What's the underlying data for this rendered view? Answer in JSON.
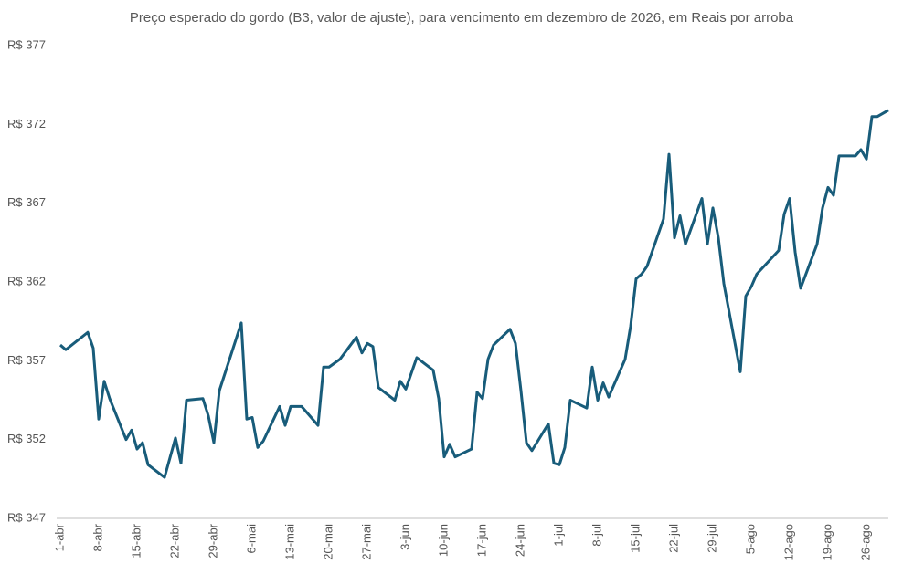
{
  "chart_data": {
    "type": "line",
    "title": "Preço esperado do gordo (B3, valor de ajuste), para vencimento em dezembro de 2026, em Reais por arroba",
    "x": [
      "1-abr",
      "2-abr",
      "6-abr",
      "7-abr",
      "8-abr",
      "9-abr",
      "10-abr",
      "13-abr",
      "14-abr",
      "15-abr",
      "16-abr",
      "17-abr",
      "20-abr",
      "22-abr",
      "23-abr",
      "24-abr",
      "27-abr",
      "28-abr",
      "29-abr",
      "30-abr",
      "4-mai",
      "5-mai",
      "6-mai",
      "7-mai",
      "8-mai",
      "11-mai",
      "12-mai",
      "13-mai",
      "15-mai",
      "18-mai",
      "19-mai",
      "20-mai",
      "22-mai",
      "25-mai",
      "26-mai",
      "27-mai",
      "28-mai",
      "29-mai",
      "1-jun",
      "2-jun",
      "3-jun",
      "5-jun",
      "8-jun",
      "9-jun",
      "10-jun",
      "11-jun",
      "12-jun",
      "15-jun",
      "16-jun",
      "17-jun",
      "18-jun",
      "19-jun",
      "22-jun",
      "23-jun",
      "24-jun",
      "25-jun",
      "26-jun",
      "29-jun",
      "30-jun",
      "1-jul",
      "2-jul",
      "3-jul",
      "6-jul",
      "7-jul",
      "8-jul",
      "9-jul",
      "10-jul",
      "13-jul",
      "14-jul",
      "15-jul",
      "16-jul",
      "17-jul",
      "20-jul",
      "21-jul",
      "22-jul",
      "23-jul",
      "24-jul",
      "27-jul",
      "28-jul",
      "29-jul",
      "30-jul",
      "31-jul",
      "3-ago",
      "4-ago",
      "5-ago",
      "6-ago",
      "10-ago",
      "11-ago",
      "12-ago",
      "13-ago",
      "14-ago",
      "17-ago",
      "18-ago",
      "19-ago",
      "20-ago",
      "21-ago",
      "24-ago",
      "25-ago",
      "26-ago",
      "27-ago",
      "28-ago",
      "30-ago"
    ],
    "series": [
      {
        "color": "#185c7a",
        "values": [
          358.0,
          357.7,
          358.8,
          357.8,
          353.3,
          355.7,
          354.6,
          352.0,
          352.6,
          351.4,
          351.8,
          350.4,
          349.6,
          352.1,
          350.5,
          354.5,
          354.6,
          353.5,
          351.8,
          355.1,
          359.4,
          353.3,
          353.4,
          351.5,
          351.9,
          354.1,
          352.9,
          354.1,
          354.1,
          352.9,
          356.6,
          356.6,
          357.1,
          358.5,
          357.5,
          358.1,
          357.9,
          355.3,
          354.5,
          355.7,
          355.2,
          357.2,
          356.4,
          354.6,
          350.9,
          351.7,
          350.9,
          351.4,
          355.0,
          354.6,
          357.1,
          358.0,
          359.0,
          358.1,
          355.1,
          351.8,
          351.3,
          353.0,
          350.5,
          350.4,
          351.5,
          354.5,
          354.0,
          356.6,
          354.5,
          355.6,
          354.7,
          357.1,
          359.2,
          362.2,
          362.5,
          363.0,
          366.0,
          370.1,
          364.8,
          366.2,
          364.4,
          367.3,
          364.4,
          366.7,
          364.8,
          361.9,
          356.3,
          361.1,
          361.7,
          362.5,
          364.0,
          366.3,
          367.3,
          363.9,
          361.6,
          364.4,
          366.7,
          368.0,
          367.5,
          370.0,
          370.0,
          370.4,
          369.8,
          372.5,
          372.5,
          372.9
        ]
      }
    ],
    "xticks": [
      "1-abr",
      "8-abr",
      "15-abr",
      "22-abr",
      "29-abr",
      "6-mai",
      "13-mai",
      "20-mai",
      "27-mai",
      "3-jun",
      "10-jun",
      "17-jun",
      "24-jun",
      "1-jul",
      "8-jul",
      "15-jul",
      "22-jul",
      "29-jul",
      "5-ago",
      "12-ago",
      "19-ago",
      "26-ago"
    ],
    "ylim": [
      347,
      377
    ],
    "yticks": [
      {
        "value": 347,
        "label": "R$ 347"
      },
      {
        "value": 352,
        "label": "R$ 352"
      },
      {
        "value": 357,
        "label": "R$ 357"
      },
      {
        "value": 362,
        "label": "R$ 362"
      },
      {
        "value": 367,
        "label": "R$ 367"
      },
      {
        "value": 372,
        "label": "R$ 372"
      },
      {
        "value": 377,
        "label": "R$ 377"
      }
    ],
    "grid": false
  }
}
